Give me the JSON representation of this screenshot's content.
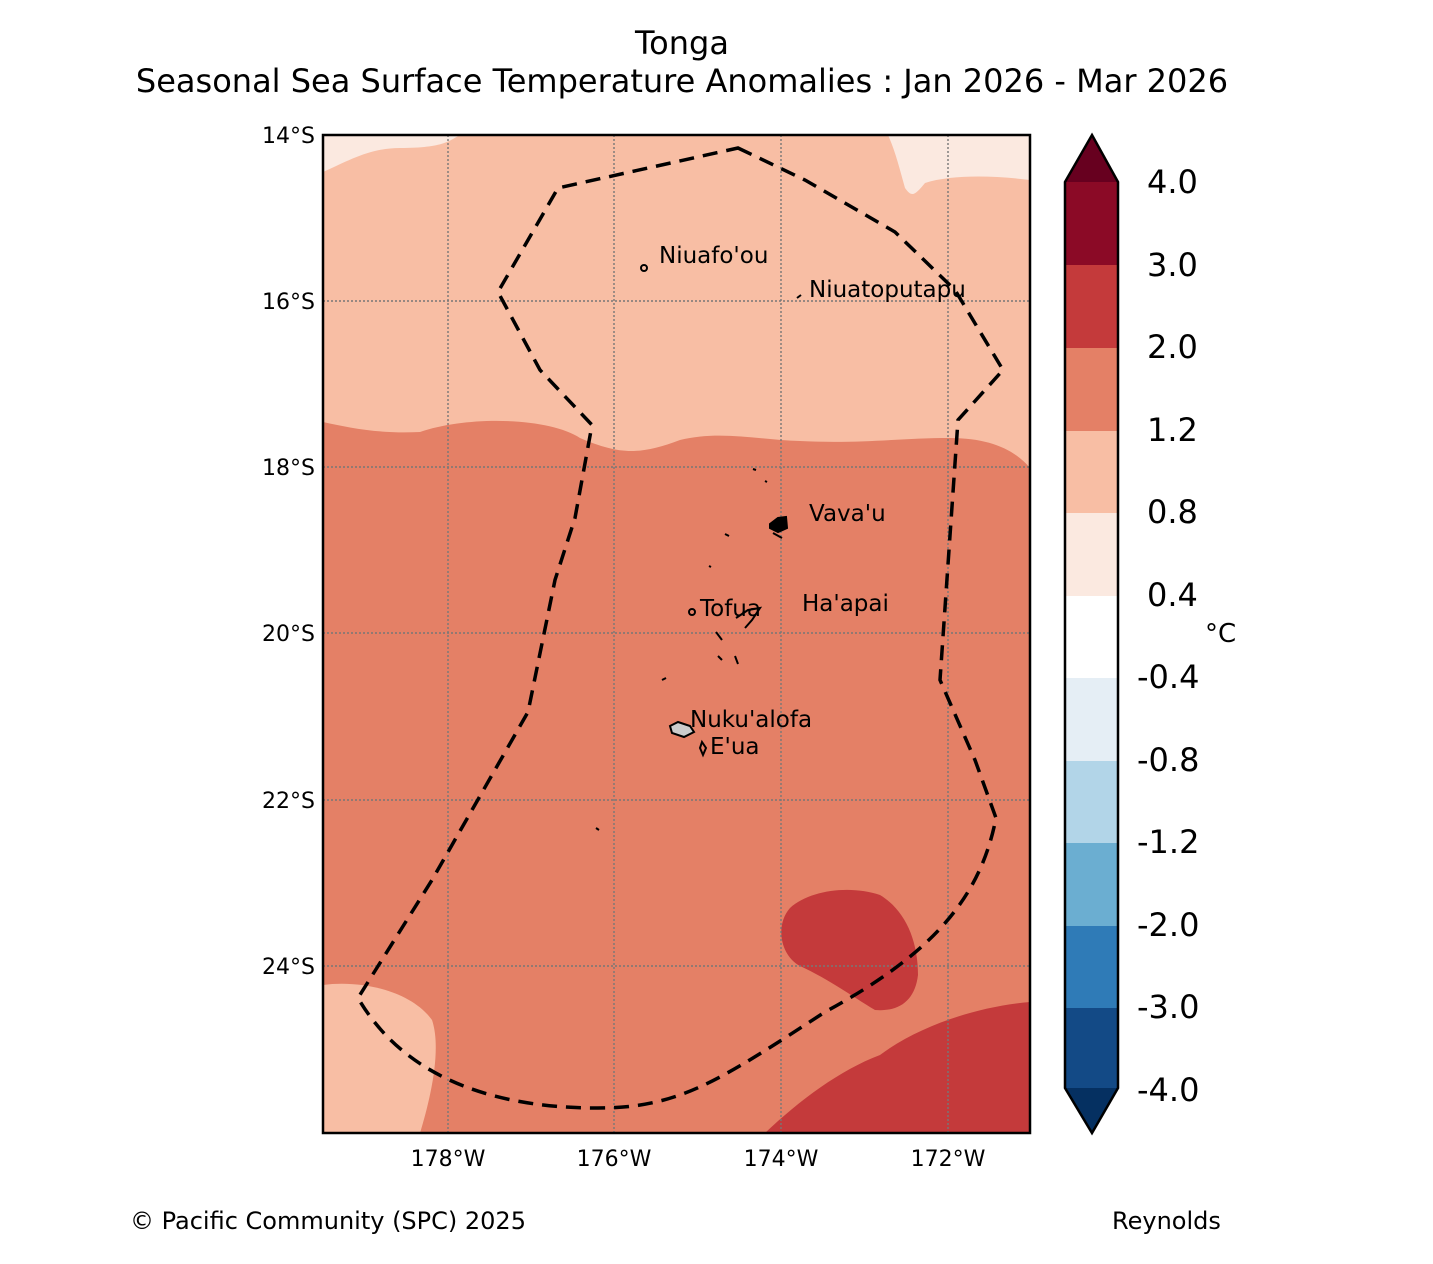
{
  "header": {
    "region": "Tonga",
    "subtitle": "Seasonal Sea Surface Temperature Anomalies : Jan 2026 - Mar 2026"
  },
  "map": {
    "lat_labels": [
      "14°S",
      "16°S",
      "18°S",
      "20°S",
      "22°S",
      "24°S"
    ],
    "lon_labels": [
      "178°W",
      "176°W",
      "174°W",
      "172°W"
    ],
    "places": [
      "Niuafo'ou",
      "Niuatoputapu",
      "Vava'u",
      "Ha'apai",
      "Tofua",
      "Nuku'alofa",
      "E'ua"
    ],
    "boundary": "dashed EEZ outline"
  },
  "legend": {
    "unit": "°C",
    "ticks": [
      "4.0",
      "3.0",
      "2.0",
      "1.2",
      "0.8",
      "0.4",
      "-0.4",
      "-0.8",
      "-1.2",
      "-2.0",
      "-3.0",
      "-4.0"
    ],
    "colors": [
      "#67001f",
      "#8b0a26",
      "#c43a3b",
      "#e48066",
      "#f8bea4",
      "#fbe9e0",
      "#ffffff",
      "#e5eef5",
      "#b2d5e8",
      "#6baed1",
      "#2f7bb7",
      "#134a86",
      "#053061"
    ]
  },
  "footer": {
    "copyright": "© Pacific Community (SPC) 2025",
    "source": "Reynolds"
  }
}
